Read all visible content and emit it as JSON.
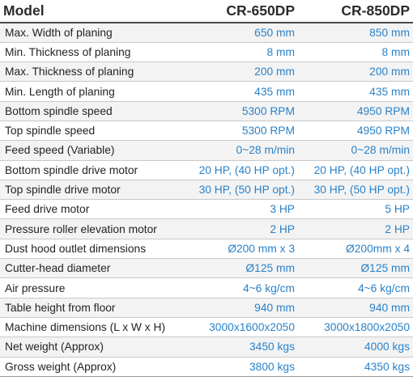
{
  "header": {
    "label": "Model",
    "models": [
      "CR-650DP",
      "CR-850DP"
    ]
  },
  "rows": [
    {
      "label": "Max. Width of planing",
      "values": [
        "650 mm",
        "850 mm"
      ]
    },
    {
      "label": "Min. Thickness of planing",
      "values": [
        "8 mm",
        "8 mm"
      ]
    },
    {
      "label": "Max. Thickness of planing",
      "values": [
        "200 mm",
        "200 mm"
      ]
    },
    {
      "label": "Min. Length of planing",
      "values": [
        "435 mm",
        "435 mm"
      ]
    },
    {
      "label": "Bottom spindle speed",
      "values": [
        "5300 RPM",
        "4950 RPM"
      ]
    },
    {
      "label": "Top spindle speed",
      "values": [
        "5300 RPM",
        "4950 RPM"
      ]
    },
    {
      "label": "Feed speed (Variable)",
      "values": [
        "0~28 m/min",
        "0~28 m/min"
      ]
    },
    {
      "label": "Bottom spindle drive motor",
      "values": [
        "20 HP, (40 HP opt.)",
        "20 HP, (40 HP opt.)"
      ]
    },
    {
      "label": "Top spindle drive motor",
      "values": [
        "30 HP, (50 HP opt.)",
        "30 HP, (50 HP opt.)"
      ]
    },
    {
      "label": "Feed drive motor",
      "values": [
        "3 HP",
        "5 HP"
      ]
    },
    {
      "label": "Pressure roller elevation motor",
      "values": [
        "2 HP",
        "2 HP"
      ]
    },
    {
      "label": "Dust hood outlet dimensions",
      "values": [
        "Ø200 mm x 3",
        "Ø200mm x 4"
      ]
    },
    {
      "label": "Cutter-head diameter",
      "values": [
        "Ø125 mm",
        "Ø125 mm"
      ]
    },
    {
      "label": "Air pressure",
      "values": [
        "4~6 kg/cm",
        "4~6 kg/cm"
      ]
    },
    {
      "label": "Table height from floor",
      "values": [
        "940 mm",
        "940 mm"
      ]
    },
    {
      "label": "Machine dimensions (L x W x H)",
      "values": [
        "3000x1600x2050",
        "3000x1800x2050"
      ]
    },
    {
      "label": "Net weight (Approx)",
      "values": [
        "3450 kgs",
        "4000 kgs"
      ]
    },
    {
      "label": "Gross weight (Approx)",
      "values": [
        "3800 kgs",
        "4350 kgs"
      ]
    }
  ],
  "colors": {
    "value_text": "#2a82c8",
    "label_text": "#232323",
    "stripe": "#f3f3f3",
    "rule": "#c9c9c9"
  }
}
